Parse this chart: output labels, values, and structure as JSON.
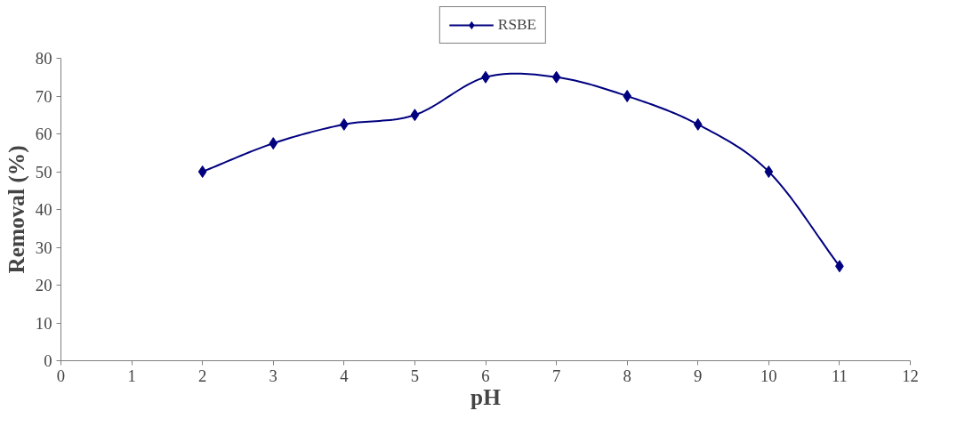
{
  "chart_data": {
    "type": "line",
    "xlabel": "pH",
    "ylabel": "Removal (%)",
    "x": [
      2,
      3,
      4,
      5,
      6,
      7,
      8,
      9,
      10,
      11
    ],
    "series": [
      {
        "name": "RSBE",
        "color": "#00007f",
        "values": [
          50,
          57.5,
          62.5,
          65,
          75,
          75,
          70,
          62.5,
          50,
          25
        ]
      }
    ],
    "xlim": [
      0,
      12
    ],
    "xticks": [
      0,
      1,
      2,
      3,
      4,
      5,
      6,
      7,
      8,
      9,
      10,
      11,
      12
    ],
    "ylim": [
      0,
      80
    ],
    "yticks": [
      0,
      10,
      20,
      30,
      40,
      50,
      60,
      70,
      80
    ],
    "grid": false,
    "legend": "top",
    "marker": "diamond",
    "line_style": "solid"
  }
}
